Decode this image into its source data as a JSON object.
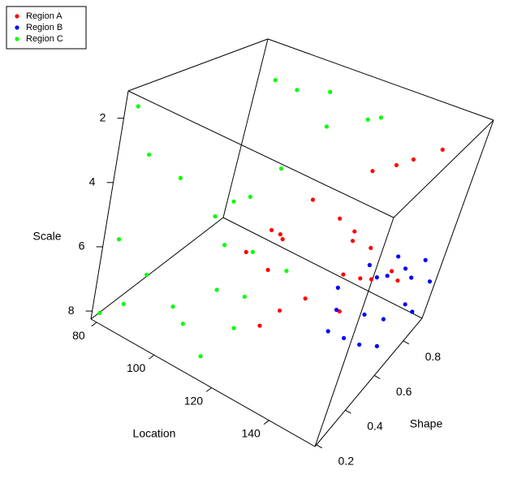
{
  "chart_data": {
    "type": "scatter3d",
    "xlabel": "Location",
    "ylabel": "Shape",
    "zlabel": "Scale",
    "xlim": [
      78,
      156
    ],
    "ylim": [
      0.19,
      0.93
    ],
    "zlim": [
      8.25,
      1.15
    ],
    "xticks": [
      80,
      100,
      120,
      140
    ],
    "yticks": [
      0.2,
      0.4,
      0.6,
      0.8
    ],
    "zticks": [
      2,
      4,
      6,
      8
    ],
    "legend": "topleft",
    "series": [
      {
        "name": "Region A",
        "color": "#ff0000",
        "x": [
          120,
          118,
          115,
          118,
          130,
          135,
          138,
          145,
          128,
          132,
          138,
          136,
          140,
          130,
          125,
          142,
          146,
          148,
          140,
          122,
          135,
          110,
          112
        ],
        "y": [
          0.6,
          0.5,
          0.55,
          0.45,
          0.75,
          0.8,
          0.85,
          0.88,
          0.65,
          0.7,
          0.72,
          0.6,
          0.65,
          0.5,
          0.45,
          0.7,
          0.75,
          0.78,
          0.55,
          0.4,
          0.62,
          0.45,
          0.55
        ],
        "z": [
          4.0,
          5.0,
          5.2,
          5.8,
          3.2,
          3.0,
          2.9,
          2.4,
          4.5,
          5.0,
          5.4,
          5.8,
          6.0,
          6.4,
          6.8,
          6.2,
          6.0,
          6.4,
          6.6,
          7.2,
          4.8,
          5.6,
          5.2
        ]
      },
      {
        "name": "Region B",
        "color": "#0000ff",
        "x": [
          135,
          140,
          142,
          145,
          148,
          150,
          152,
          138,
          145,
          150,
          153,
          155,
          148,
          152,
          144,
          140,
          155,
          146
        ],
        "y": [
          0.62,
          0.7,
          0.75,
          0.8,
          0.82,
          0.85,
          0.87,
          0.58,
          0.65,
          0.7,
          0.78,
          0.82,
          0.6,
          0.66,
          0.55,
          0.5,
          0.9,
          0.72
        ],
        "z": [
          6.4,
          5.8,
          6.4,
          5.8,
          6.2,
          6.6,
          6.0,
          6.8,
          7.0,
          7.2,
          7.0,
          7.4,
          7.6,
          7.8,
          7.3,
          7.0,
          6.8,
          6.0
        ]
      },
      {
        "name": "Region C",
        "color": "#00ff00",
        "x": [
          80,
          84,
          92,
          82,
          90,
          86,
          80,
          95,
          100,
          108,
          112,
          120,
          125,
          110,
          105,
          98,
          105,
          112,
          108,
          115,
          100,
          118,
          100,
          110,
          120,
          96
        ],
        "y": [
          0.22,
          0.25,
          0.3,
          0.2,
          0.25,
          0.22,
          0.2,
          0.7,
          0.75,
          0.8,
          0.75,
          0.85,
          0.82,
          0.55,
          0.5,
          0.45,
          0.4,
          0.45,
          0.35,
          0.4,
          0.25,
          0.3,
          0.35,
          0.3,
          0.55,
          0.6
        ],
        "z": [
          1.6,
          3.0,
          3.5,
          5.6,
          6.5,
          7.5,
          8.0,
          1.3,
          1.6,
          1.5,
          2.4,
          2.2,
          1.8,
          3.2,
          4.2,
          5.0,
          5.4,
          5.5,
          6.5,
          6.6,
          7.0,
          7.0,
          8.0,
          8.3,
          6.2,
          5.2
        ]
      }
    ]
  }
}
